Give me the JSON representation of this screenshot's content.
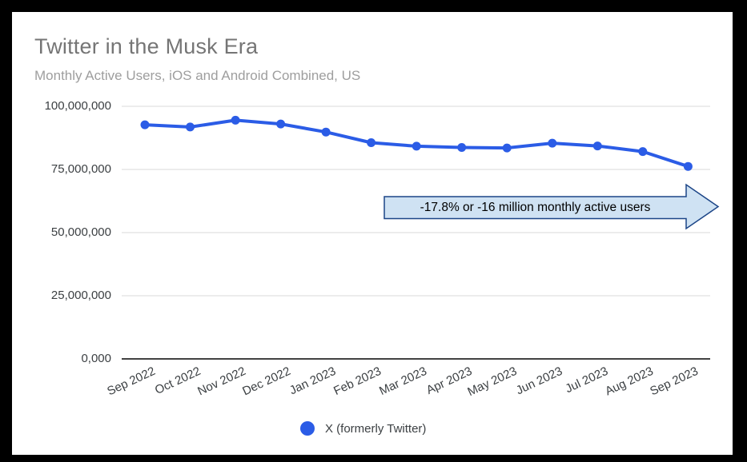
{
  "header": {
    "title": "Twitter in the Musk Era",
    "subtitle": "Monthly Active Users, iOS and Android Combined, US"
  },
  "legend": {
    "label": "X (formerly Twitter)"
  },
  "annotation": {
    "text": "-17.8% or -16 million monthly active users",
    "fill_color": "#cfe2f3",
    "border_color": "#1c4587"
  },
  "colors": {
    "series_line": "#2b5ce6",
    "gridline": "#e6e6e6",
    "axis_baseline": "#424242",
    "title_text": "#757575",
    "subtitle_text": "#9e9e9e",
    "tick_text": "#3c4043",
    "frame": "#000000",
    "card_background": "#ffffff"
  },
  "chart_data": {
    "type": "line",
    "title": "Twitter in the Musk Era",
    "subtitle": "Monthly Active Users, iOS and Android Combined, US",
    "categories": [
      "Sep 2022",
      "Oct 2022",
      "Nov 2022",
      "Dec 2022",
      "Jan 2023",
      "Feb 2023",
      "Mar 2023",
      "Apr 2023",
      "May 2023",
      "Jun 2023",
      "Jul 2023",
      "Aug 2023",
      "Sep 2023"
    ],
    "series": [
      {
        "name": "X (formerly Twitter)",
        "values": [
          92700000,
          91800000,
          94500000,
          93000000,
          89800000,
          85600000,
          84200000,
          83700000,
          83500000,
          85400000,
          84300000,
          82100000,
          76200000
        ]
      }
    ],
    "y_ticks": [
      {
        "value": 100000000,
        "label": "100,000,000"
      },
      {
        "value": 75000000,
        "label": "75,000,000"
      },
      {
        "value": 50000000,
        "label": "50,000,000"
      },
      {
        "value": 25000000,
        "label": "25,000,000"
      },
      {
        "value": 0,
        "label": "0,000"
      }
    ],
    "ylim": [
      0,
      100000000
    ],
    "grid": true,
    "legend_position": "bottom",
    "annotation": "-17.8% or -16 million monthly active users"
  }
}
